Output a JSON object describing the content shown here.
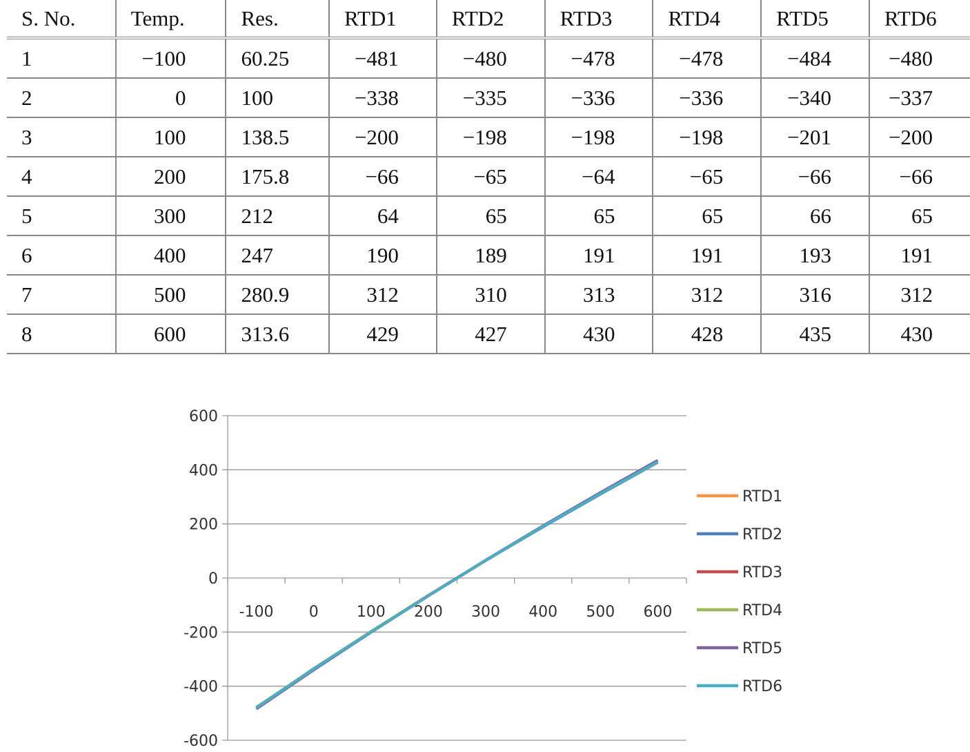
{
  "table": {
    "headers": [
      "S. No.",
      "Temp.",
      "Res.",
      "RTD1",
      "RTD2",
      "RTD3",
      "RTD4",
      "RTD5",
      "RTD6"
    ],
    "rows": [
      [
        "1",
        "−100",
        "60.25",
        "−481",
        "−480",
        "−478",
        "−478",
        "−484",
        "−480"
      ],
      [
        "2",
        "0",
        "100",
        "−338",
        "−335",
        "−336",
        "−336",
        "−340",
        "−337"
      ],
      [
        "3",
        "100",
        "138.5",
        "−200",
        "−198",
        "−198",
        "−198",
        "−201",
        "−200"
      ],
      [
        "4",
        "200",
        "175.8",
        "−66",
        "−65",
        "−64",
        "−65",
        "−66",
        "−66"
      ],
      [
        "5",
        "300",
        "212",
        "64",
        "65",
        "65",
        "65",
        "66",
        "65"
      ],
      [
        "6",
        "400",
        "247",
        "190",
        "189",
        "191",
        "191",
        "193",
        "191"
      ],
      [
        "7",
        "500",
        "280.9",
        "312",
        "310",
        "313",
        "312",
        "316",
        "312"
      ],
      [
        "8",
        "600",
        "313.6",
        "429",
        "427",
        "430",
        "428",
        "435",
        "430"
      ]
    ]
  },
  "chart_data": {
    "type": "line",
    "title": "",
    "xlabel": "",
    "ylabel": "",
    "categories": [
      "-100",
      "0",
      "100",
      "200",
      "300",
      "400",
      "500",
      "600"
    ],
    "yticks": [
      "600",
      "400",
      "200",
      "0",
      "-200",
      "-400",
      "-600"
    ],
    "ylim": [
      -600,
      600
    ],
    "grid": true,
    "legend": "right",
    "series": [
      {
        "name": "RTD1",
        "color": "#F79646",
        "values": [
          -481,
          -338,
          -200,
          -66,
          64,
          190,
          312,
          429
        ]
      },
      {
        "name": "RTD2",
        "color": "#4F81BD",
        "values": [
          -480,
          -335,
          -198,
          -65,
          65,
          189,
          310,
          427
        ]
      },
      {
        "name": "RTD3",
        "color": "#C0504D",
        "values": [
          -478,
          -336,
          -198,
          -64,
          65,
          191,
          313,
          430
        ]
      },
      {
        "name": "RTD4",
        "color": "#9BBB59",
        "values": [
          -478,
          -336,
          -198,
          -65,
          65,
          191,
          312,
          428
        ]
      },
      {
        "name": "RTD5",
        "color": "#8064A2",
        "values": [
          -484,
          -340,
          -201,
          -66,
          66,
          193,
          316,
          435
        ]
      },
      {
        "name": "RTD6",
        "color": "#4BACC6",
        "values": [
          -480,
          -337,
          -200,
          -66,
          65,
          191,
          312,
          430
        ]
      }
    ]
  }
}
